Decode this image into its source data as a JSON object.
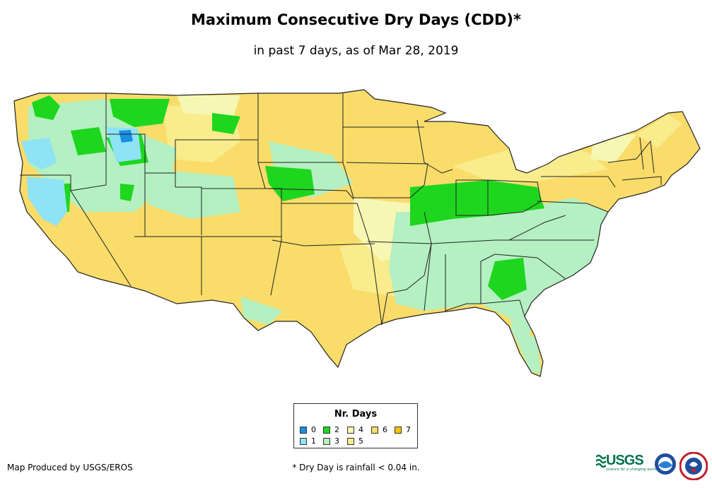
{
  "title": "Maximum Consecutive Dry Days (CDD)*",
  "subtitle": "in past 7 days, as of Mar 28, 2019",
  "legend": {
    "title": "Nr. Days",
    "items": [
      {
        "label": "0",
        "color": "#1a8fe3"
      },
      {
        "label": "1",
        "color": "#8ee3f5"
      },
      {
        "label": "2",
        "color": "#1ed61e"
      },
      {
        "label": "3",
        "color": "#b4f0c2"
      },
      {
        "label": "4",
        "color": "#f7f7b4"
      },
      {
        "label": "5",
        "color": "#f9ec8c"
      },
      {
        "label": "6",
        "color": "#f9dc6a"
      },
      {
        "label": "7",
        "color": "#f5c400"
      }
    ]
  },
  "credit": "Map Produced by USGS/EROS",
  "footnote": "* Dry Day is rainfall < 0.04 in.",
  "logos": {
    "usgs": "USGS",
    "usgs_tagline": "science for a changing world",
    "noaa": "noaa-logo",
    "nws": "nws-logo"
  },
  "colors": {
    "background": "#ffffff",
    "border": "#333333"
  }
}
